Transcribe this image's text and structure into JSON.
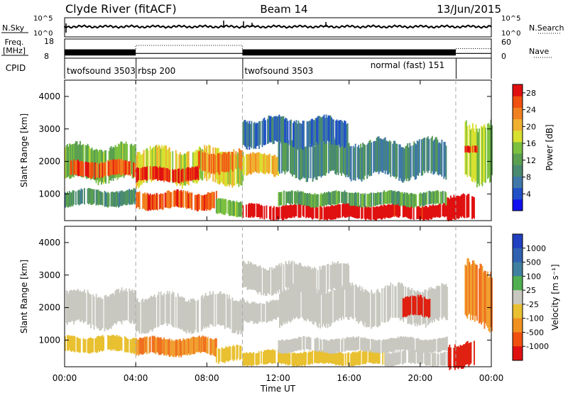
{
  "header": {
    "station": "Clyde River (fitACF)",
    "beam": "Beam 14",
    "date": "13/Jun/2015"
  },
  "strips": {
    "nsky_label": "N.Sky",
    "nsky_ticks": [
      "10^5",
      "10^0"
    ],
    "nsearch_label": "N.Search",
    "freq_label_1": "Freq.",
    "freq_label_2": "[MHz]",
    "freq_ticks": [
      "18",
      "8"
    ],
    "nave_label": "Nave",
    "nave_ticks": [
      "60",
      "0"
    ],
    "cpid_label": "CPID"
  },
  "chart_data": [
    {
      "type": "line",
      "title": "N.Sky",
      "x_unit": "hours UT",
      "xlim": [
        0,
        24
      ],
      "ylim": [
        0,
        5
      ],
      "y_scale": "log (10^0 to 10^5)",
      "notes": "noise level roughly 10^1 to 10^2 throughout the day"
    },
    {
      "type": "line",
      "title": "Freq. [MHz]",
      "xlim": [
        0,
        24
      ],
      "ylim": [
        8,
        18
      ],
      "series": [
        {
          "name": "Freq.",
          "x": [
            0,
            4,
            4,
            10,
            10,
            22,
            22,
            24
          ],
          "y": [
            10.5,
            10.5,
            10.5,
            10.5,
            10.5,
            10.5,
            10.5,
            10.5
          ]
        }
      ],
      "nave_ylim": [
        0,
        60
      ],
      "nave": {
        "x": [
          0,
          4,
          4,
          10,
          10,
          22,
          22,
          24
        ],
        "y": [
          25,
          25,
          40,
          40,
          25,
          25,
          30,
          30
        ]
      }
    },
    {
      "type": "table",
      "title": "CPID",
      "columns": [
        "start_hour",
        "end_hour",
        "label"
      ],
      "rows": [
        [
          0,
          4,
          "twofsound 3503"
        ],
        [
          4,
          10,
          "rbsp 200"
        ],
        [
          10,
          22,
          "twofsound 3503"
        ],
        [
          22,
          24,
          "normal (fast) 151"
        ]
      ]
    },
    {
      "type": "heatmap",
      "title": "Power",
      "xlabel": "Time UT",
      "ylabel": "Slant Range [km]",
      "xlim": [
        0,
        24
      ],
      "ylim": [
        180,
        4500
      ],
      "xticks": [
        "00:00",
        "04:00",
        "08:00",
        "12:00",
        "16:00",
        "20:00",
        "00:00"
      ],
      "yticks": [
        1000,
        2000,
        3000,
        4000
      ],
      "colorbar_label": "Power [dB]",
      "colorbar_ticks": [
        4,
        8,
        12,
        16,
        20,
        24,
        28
      ],
      "colorbar_range": [
        0,
        30
      ],
      "bands": [
        {
          "t0": 0.0,
          "t1": 4.0,
          "r0": 1450,
          "r1": 2450,
          "value": 14
        },
        {
          "t0": 0.3,
          "t1": 4.0,
          "r0": 1550,
          "r1": 2000,
          "value": 26
        },
        {
          "t0": 4.0,
          "t1": 10.0,
          "r0": 1350,
          "r1": 2350,
          "value": 18
        },
        {
          "t0": 4.0,
          "t1": 7.5,
          "r0": 1400,
          "r1": 1800,
          "value": 28
        },
        {
          "t0": 7.5,
          "t1": 10.0,
          "r0": 1700,
          "r1": 2300,
          "value": 24
        },
        {
          "t0": 0.0,
          "t1": 4.0,
          "r0": 650,
          "r1": 1100,
          "value": 10
        },
        {
          "t0": 4.0,
          "t1": 8.5,
          "r0": 550,
          "r1": 1050,
          "value": 25
        },
        {
          "t0": 8.5,
          "t1": 10.0,
          "r0": 350,
          "r1": 800,
          "value": 14
        },
        {
          "t0": 10.0,
          "t1": 12.0,
          "r0": 1600,
          "r1": 2200,
          "value": 20
        },
        {
          "t0": 10.0,
          "t1": 21.5,
          "r0": 250,
          "r1": 650,
          "value": 30
        },
        {
          "t0": 12.0,
          "t1": 21.5,
          "r0": 650,
          "r1": 1050,
          "value": 12
        },
        {
          "t0": 12.0,
          "t1": 21.5,
          "r0": 1550,
          "r1": 2600,
          "value": 9
        },
        {
          "t0": 10.0,
          "t1": 16.0,
          "r0": 2500,
          "r1": 3300,
          "value": 7
        },
        {
          "t0": 21.5,
          "t1": 23.0,
          "r0": 200,
          "r1": 900,
          "value": 30
        },
        {
          "t0": 22.5,
          "t1": 24.0,
          "r0": 1500,
          "r1": 3200,
          "value": 16
        },
        {
          "t0": 22.5,
          "t1": 23.2,
          "r0": 2300,
          "r1": 2500,
          "value": 28
        }
      ]
    },
    {
      "type": "heatmap",
      "title": "Velocity",
      "xlabel": "Time UT",
      "ylabel": "Slant Range [km]",
      "xlim": [
        0,
        24
      ],
      "ylim": [
        180,
        4500
      ],
      "xticks": [
        "00:00",
        "04:00",
        "08:00",
        "12:00",
        "16:00",
        "20:00",
        "00:00"
      ],
      "yticks": [
        1000,
        2000,
        3000,
        4000
      ],
      "colorbar_label": "Velocity [m s⁻¹]",
      "colorbar_ticks": [
        1000,
        500,
        100,
        25,
        -25,
        -100,
        -500,
        -1000
      ],
      "colorbar_range": [
        -1000,
        1000
      ],
      "bands": [
        {
          "t0": 0.0,
          "t1": 4.0,
          "r0": 1450,
          "r1": 2450,
          "value": 0
        },
        {
          "t0": 4.0,
          "t1": 10.0,
          "r0": 1350,
          "r1": 2350,
          "value": 0
        },
        {
          "t0": 0.0,
          "t1": 4.0,
          "r0": 650,
          "r1": 1100,
          "value": -70
        },
        {
          "t0": 4.0,
          "t1": 8.5,
          "r0": 550,
          "r1": 1050,
          "value": -300
        },
        {
          "t0": 8.5,
          "t1": 10.0,
          "r0": 350,
          "r1": 800,
          "value": -60
        },
        {
          "t0": 10.0,
          "t1": 12.0,
          "r0": 1600,
          "r1": 2200,
          "value": 0
        },
        {
          "t0": 10.0,
          "t1": 18.0,
          "r0": 250,
          "r1": 650,
          "value": -70
        },
        {
          "t0": 18.0,
          "t1": 21.5,
          "r0": 250,
          "r1": 650,
          "value": 0
        },
        {
          "t0": 12.0,
          "t1": 21.5,
          "r0": 650,
          "r1": 1050,
          "value": 0
        },
        {
          "t0": 12.0,
          "t1": 21.5,
          "r0": 1550,
          "r1": 2600,
          "value": 0
        },
        {
          "t0": 10.0,
          "t1": 16.0,
          "r0": 2500,
          "r1": 3300,
          "value": 0
        },
        {
          "t0": 21.5,
          "t1": 23.0,
          "r0": 200,
          "r1": 900,
          "value": -700
        },
        {
          "t0": 22.5,
          "t1": 24.0,
          "r0": 1500,
          "r1": 3200,
          "value": -300
        },
        {
          "t0": 19.0,
          "t1": 20.5,
          "r0": 1700,
          "r1": 2300,
          "value": -600
        }
      ]
    }
  ]
}
